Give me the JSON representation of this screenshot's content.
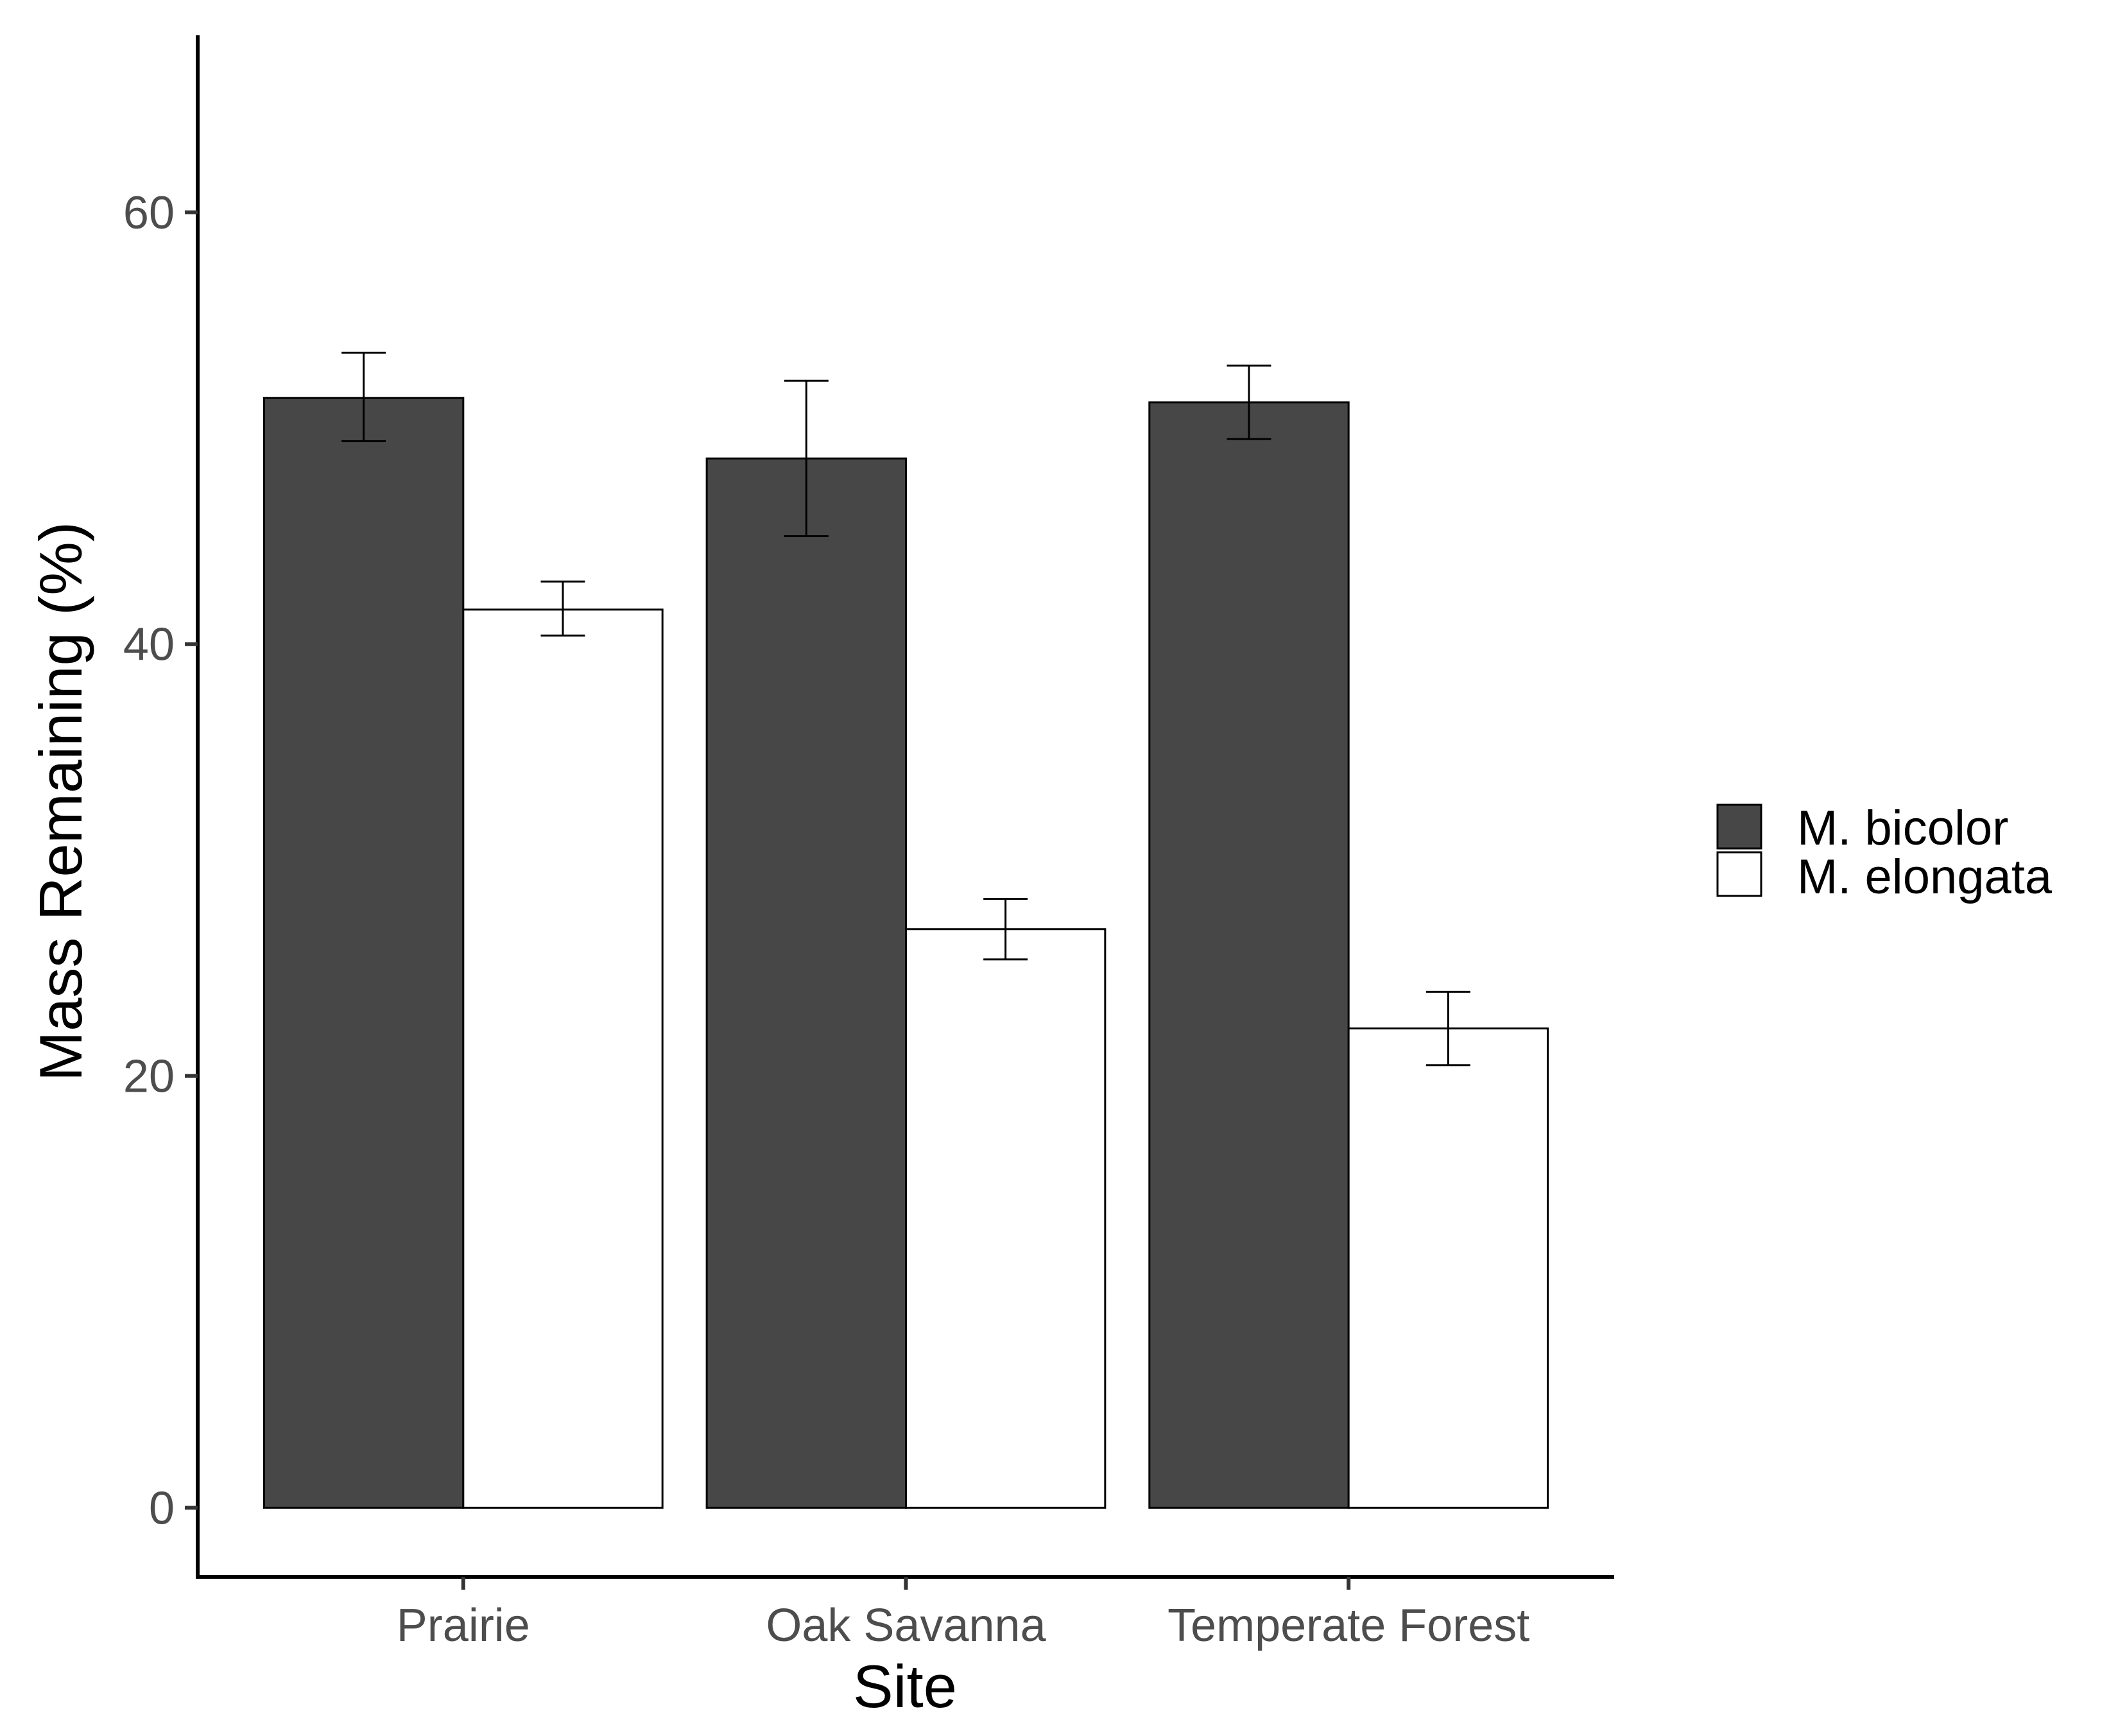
{
  "chart_data": {
    "type": "bar",
    "title": "",
    "xlabel": "Site",
    "ylabel": "Mass Remaining (%)",
    "categories": [
      "Prairie",
      "Oak Savanna",
      "Temperate Forest"
    ],
    "series": [
      {
        "name": "M. bicolor",
        "color": "#474747",
        "values": [
          51.4,
          48.6,
          51.2
        ],
        "error_low": [
          49.4,
          45.0,
          49.5
        ],
        "error_high": [
          53.5,
          52.2,
          52.9
        ]
      },
      {
        "name": "M. elongata",
        "color": "#ffffff",
        "values": [
          41.6,
          26.8,
          22.2
        ],
        "error_low": [
          40.4,
          25.4,
          20.5
        ],
        "error_high": [
          42.9,
          28.2,
          23.9
        ]
      }
    ],
    "ylim": [
      -3.2,
      68.2
    ],
    "yticks": [
      0,
      20,
      40,
      60
    ],
    "ytick_labels": [
      "0",
      "20",
      "40",
      "60"
    ],
    "grid": false,
    "legend_position": "right"
  }
}
